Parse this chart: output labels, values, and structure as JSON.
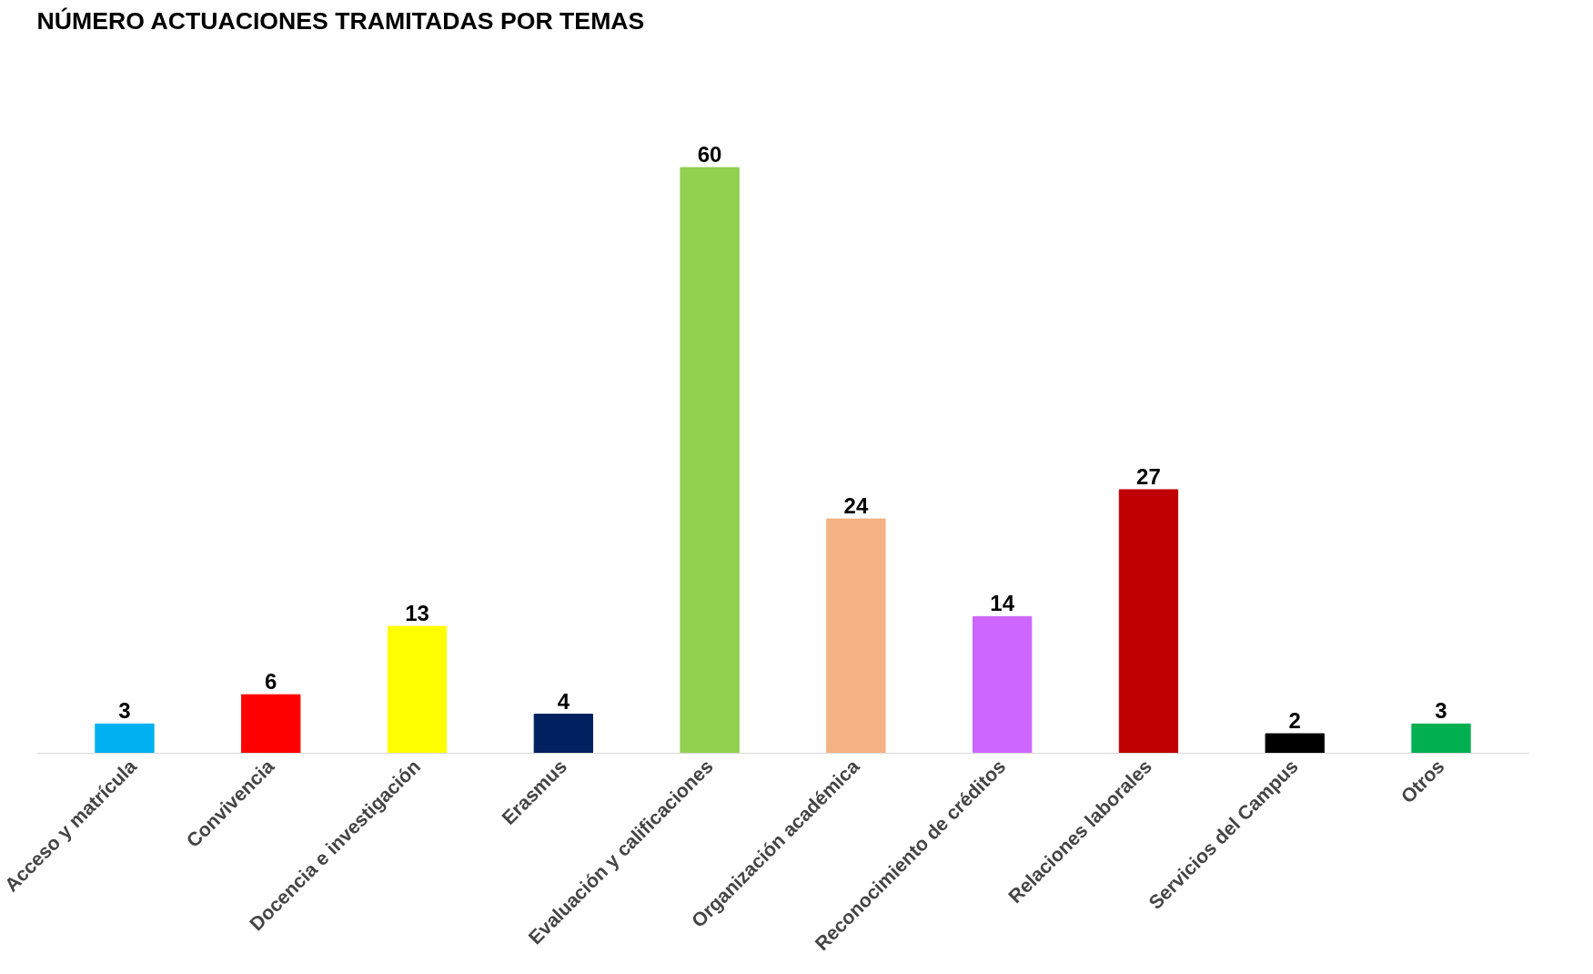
{
  "chart_data": {
    "type": "bar",
    "title": "NÚMERO   ACTUACIONES   TRAMITADAS   POR   TEMAS",
    "categories": [
      "Acceso y matrícula",
      "Convivencia",
      "Docencia e investigación",
      "Erasmus",
      "Evaluación y calificaciones",
      "Organización académica",
      "Reconocimiento de créditos",
      "Relaciones laborales",
      "Servicios del Campus",
      "Otros"
    ],
    "values": [
      3,
      6,
      13,
      4,
      60,
      24,
      14,
      27,
      2,
      3
    ],
    "colors": [
      "#00b0f0",
      "#ff0000",
      "#ffff00",
      "#002060",
      "#92d050",
      "#f4b183",
      "#cc66ff",
      "#c00000",
      "#000000",
      "#00b050"
    ],
    "data_labels": true
  }
}
